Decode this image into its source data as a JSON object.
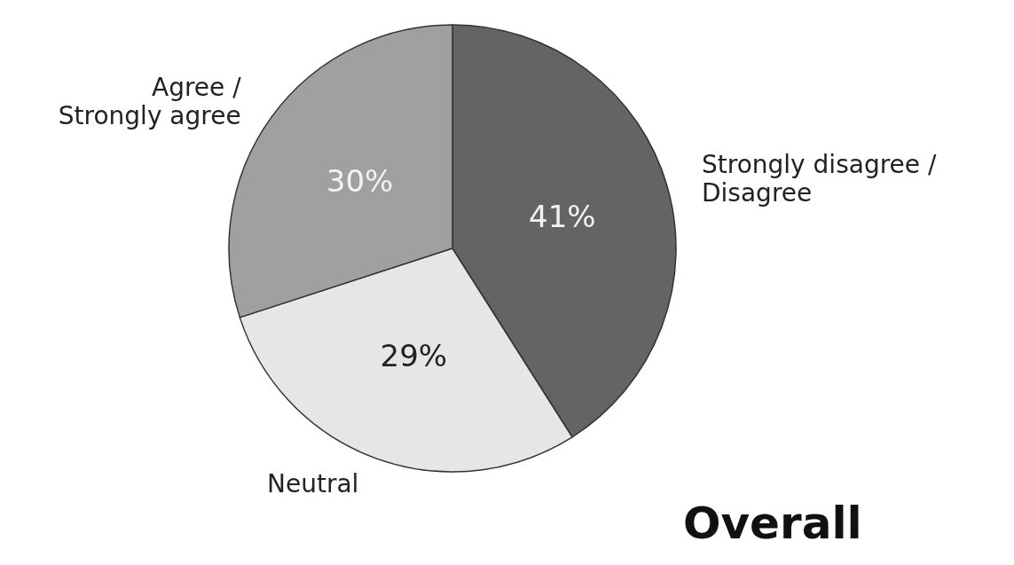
{
  "chart_data": {
    "type": "pie",
    "title": "Overall",
    "categories": [
      "Strongly disagree /\nDisagree",
      "Neutral",
      "Agree /\nStrongly agree"
    ],
    "values": [
      41,
      29,
      30
    ],
    "colors": [
      "#646464",
      "#e6e6e6",
      "#a0a0a0"
    ],
    "value_labels": [
      "41%",
      "29%",
      "30%"
    ],
    "legend": false
  }
}
